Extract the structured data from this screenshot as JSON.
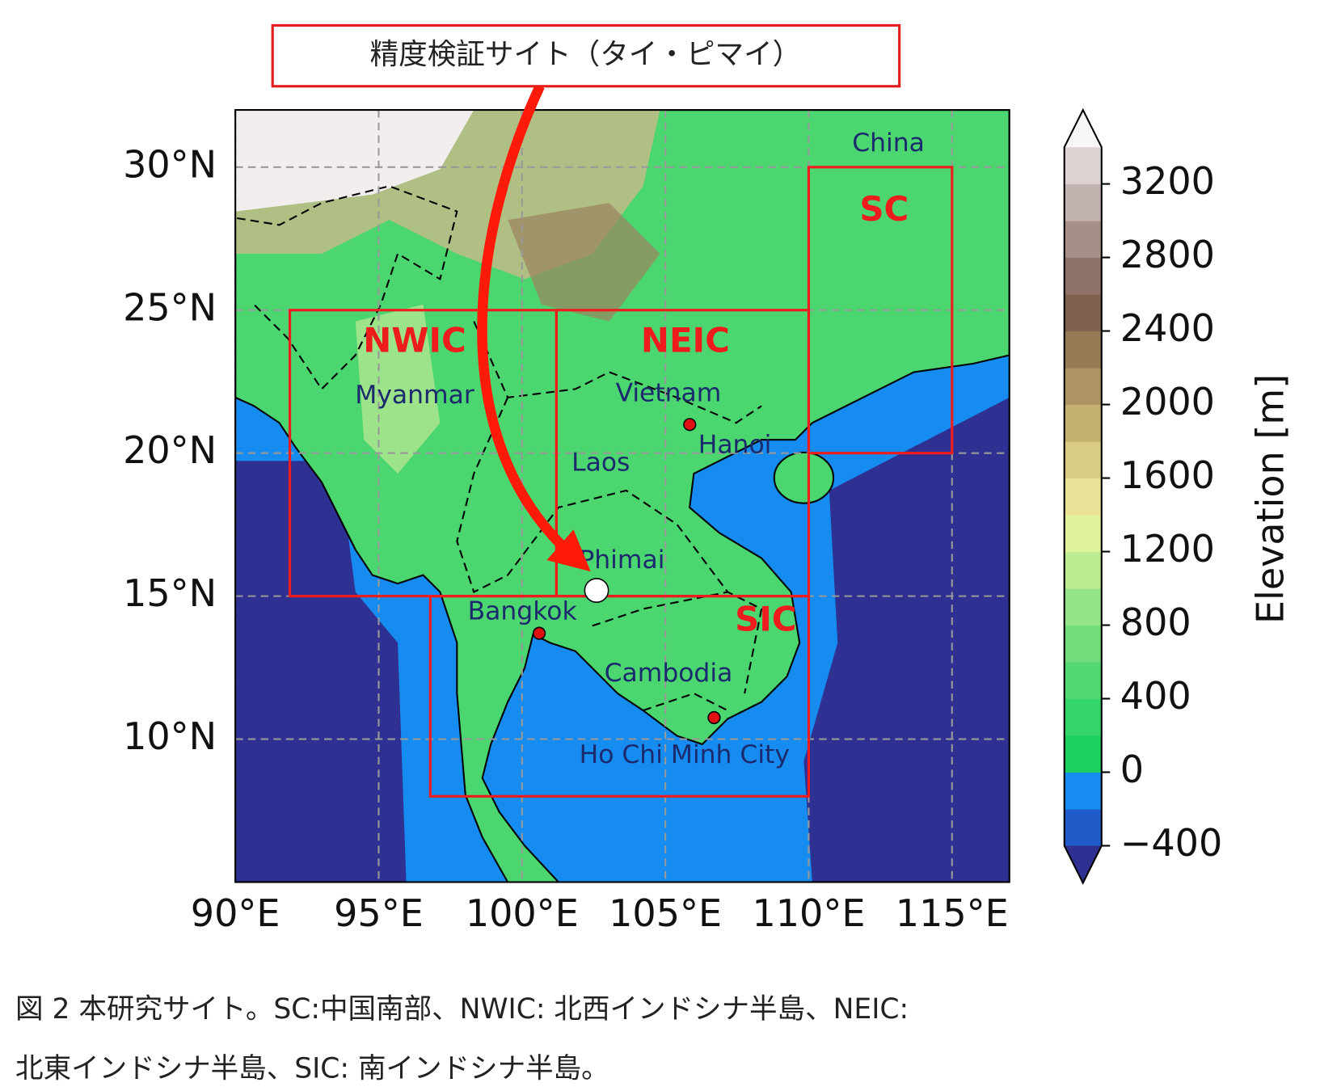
{
  "callout": "精度検証サイト（タイ・ピマイ）",
  "map": {
    "xlim": [
      90,
      117
    ],
    "ylim": [
      5,
      32
    ],
    "xticks": [
      {
        "value": 90,
        "label": "90°E"
      },
      {
        "value": 95,
        "label": "95°E"
      },
      {
        "value": 100,
        "label": "100°E"
      },
      {
        "value": 105,
        "label": "105°E"
      },
      {
        "value": 110,
        "label": "110°E"
      },
      {
        "value": 115,
        "label": "115°E"
      }
    ],
    "yticks": [
      {
        "value": 10,
        "label": "10°N"
      },
      {
        "value": 15,
        "label": "15°N"
      },
      {
        "value": 20,
        "label": "20°N"
      },
      {
        "value": 25,
        "label": "25°N"
      },
      {
        "value": 30,
        "label": "30°N"
      }
    ],
    "grid": true,
    "regions": [
      {
        "label": "SC",
        "lon": [
          110,
          115
        ],
        "lat": [
          20,
          30
        ]
      },
      {
        "label": "NWIC",
        "lon": [
          91.9,
          101.2
        ],
        "lat": [
          15,
          25
        ]
      },
      {
        "label": "NEIC",
        "lon": [
          101.2,
          110
        ],
        "lat": [
          15,
          25
        ]
      },
      {
        "label": "SIC",
        "lon": [
          96.8,
          110
        ],
        "lat": [
          8,
          15
        ]
      }
    ],
    "region_color": "#ee1c1c",
    "countries": [
      "China",
      "Myanmar",
      "Vietnam",
      "Laos",
      "Cambodia"
    ],
    "cities": [
      {
        "name": "Hanoi",
        "lon": 105.85,
        "lat": 21.0,
        "color": "#e01010"
      },
      {
        "name": "Bangkok",
        "lon": 100.6,
        "lat": 13.7,
        "color": "#e01010"
      },
      {
        "name": "Ho Chi Minh City",
        "lon": 106.7,
        "lat": 10.75,
        "color": "#e01010"
      },
      {
        "name": "Phimai",
        "lon": 102.6,
        "lat": 15.2,
        "color": "#ffffff"
      }
    ]
  },
  "colorbar": {
    "label": "Elevation [m]",
    "lim": [
      -400,
      3400
    ],
    "ticks": [
      {
        "value": -400,
        "label": "−400"
      },
      0,
      400,
      800,
      1200,
      1600,
      2000,
      2400,
      2800,
      3200
    ],
    "colors": [
      "#1f5bc9",
      "#168cf0",
      "#1dcf5e",
      "#34d56a",
      "#52d973",
      "#73dd7c",
      "#96e488",
      "#bdec92",
      "#e0f29c",
      "#eae296",
      "#d9cb83",
      "#c4b071",
      "#ad9462",
      "#967a55",
      "#7f624e",
      "#8e7268",
      "#a78f88",
      "#c2b3b0",
      "#dcd3d1"
    ],
    "under_color": "#2e3192",
    "over_color": "#f8f6f6"
  },
  "caption": [
    "図 2 本研究サイト。SC:中国南部、NWIC: 北西インドシナ半島、NEIC:",
    "北東インドシナ半島、SIC: 南インドシナ半島。"
  ]
}
